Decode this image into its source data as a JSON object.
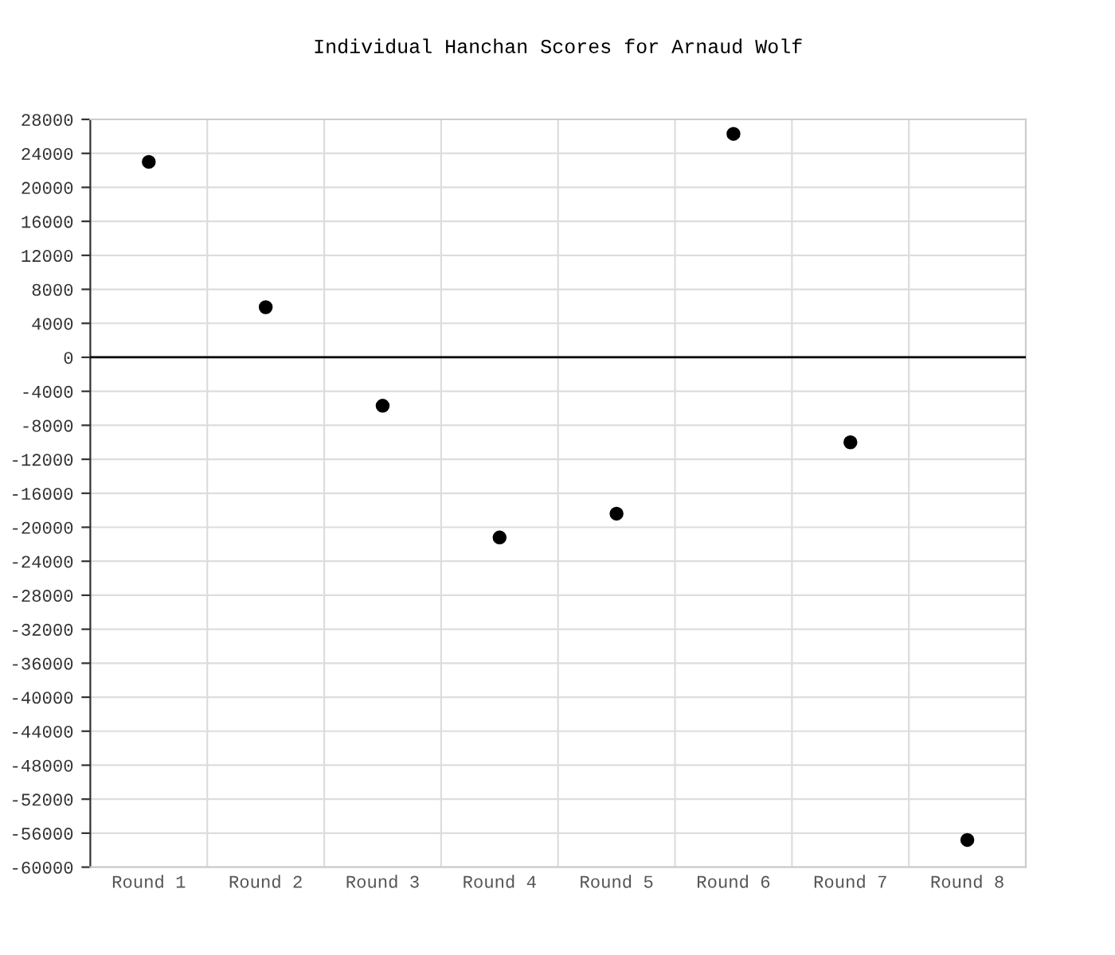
{
  "chart_data": {
    "type": "scatter",
    "title": "Individual Hanchan Scores for Arnaud Wolf",
    "categories": [
      "Round 1",
      "Round 2",
      "Round 3",
      "Round 4",
      "Round 5",
      "Round 6",
      "Round 7",
      "Round 8"
    ],
    "series": [
      {
        "color": "#000000",
        "values": [
          23000,
          5900,
          -5700,
          -21200,
          -18400,
          26300,
          -10000,
          -56800
        ]
      }
    ],
    "ylim": [
      -60000,
      28000
    ],
    "yticks": [
      -60000,
      -56000,
      -52000,
      -48000,
      -44000,
      -40000,
      -36000,
      -32000,
      -28000,
      -24000,
      -20000,
      -16000,
      -12000,
      -8000,
      -4000,
      0,
      4000,
      8000,
      12000,
      16000,
      20000,
      24000,
      28000
    ],
    "ref_lines": [
      {
        "axis": "y",
        "value": 0,
        "color": "#000000"
      }
    ],
    "grid": true,
    "marker": "circle"
  }
}
